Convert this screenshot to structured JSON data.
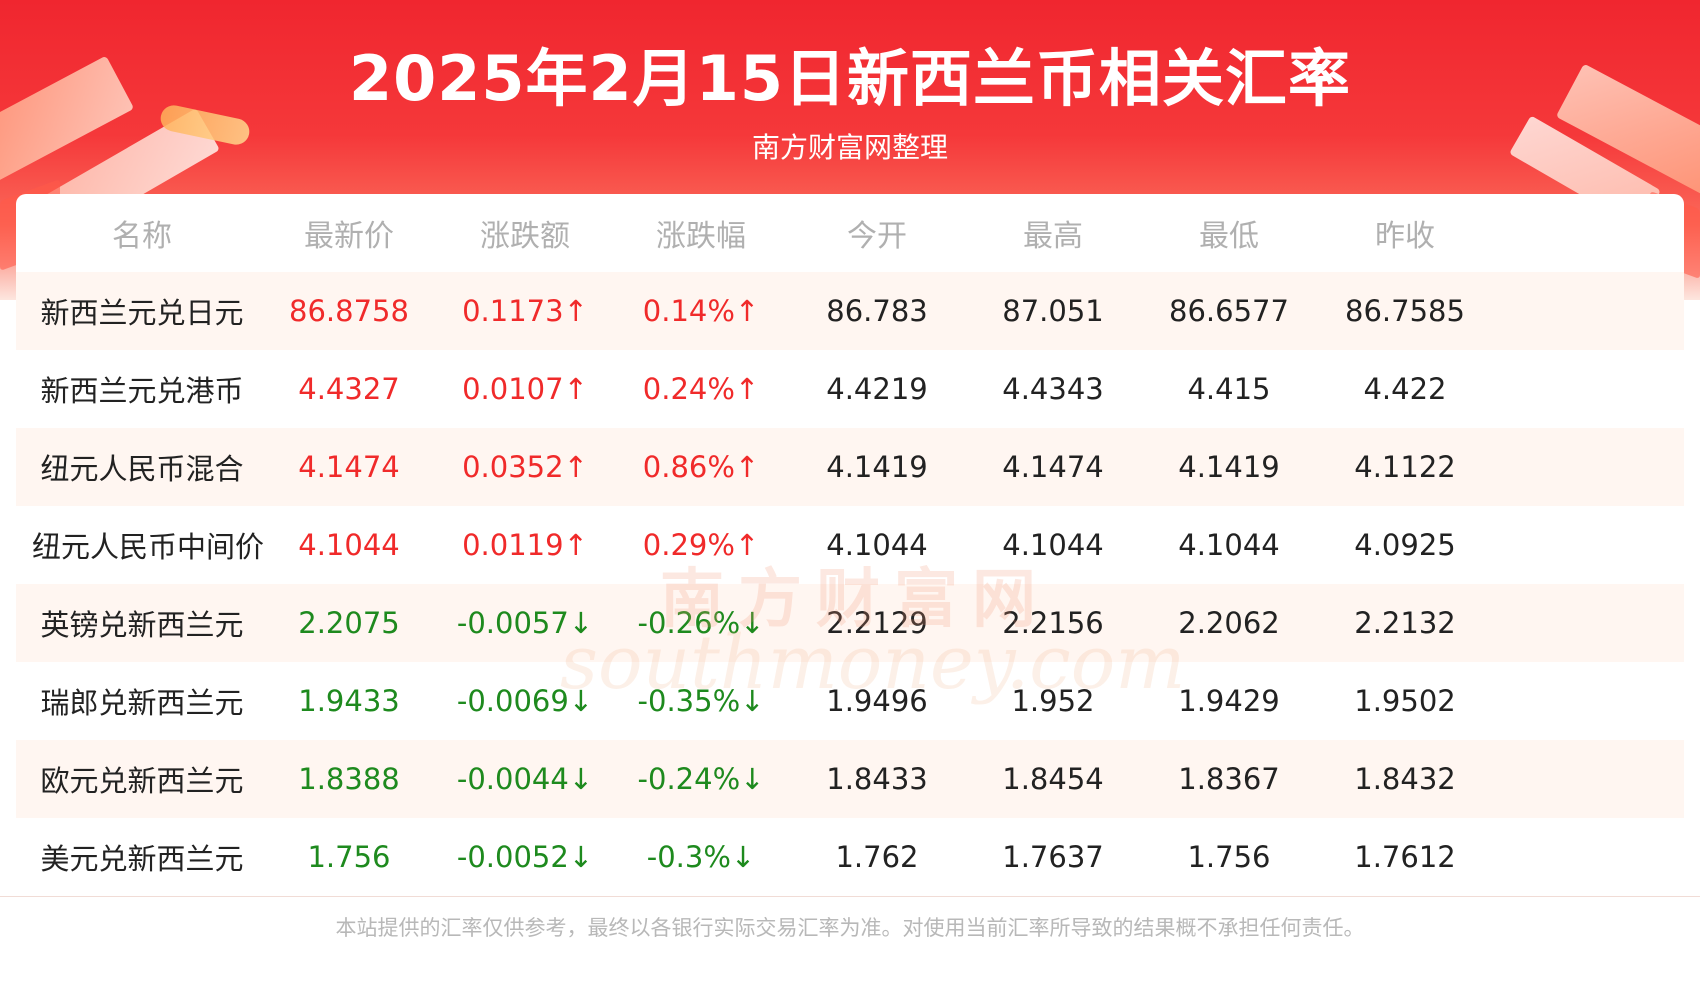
{
  "header": {
    "title": "2025年2月15日新西兰币相关汇率",
    "subtitle": "南方财富网整理"
  },
  "colors": {
    "up": "#f02a2a",
    "down": "#1e8a1e",
    "header_red": "#f0262f",
    "row_tint": "#fff6f1"
  },
  "table": {
    "headers": [
      "名称",
      "最新价",
      "涨跌额",
      "涨跌幅",
      "今开",
      "最高",
      "最低",
      "昨收"
    ],
    "rows": [
      {
        "name": "新西兰元兑日元",
        "latest": "86.8758",
        "change": "0.1173↑",
        "pct": "0.14%↑",
        "open": "86.783",
        "high": "87.051",
        "low": "86.6577",
        "prev": "86.7585",
        "dir": "up"
      },
      {
        "name": "新西兰元兑港币",
        "latest": "4.4327",
        "change": "0.0107↑",
        "pct": "0.24%↑",
        "open": "4.4219",
        "high": "4.4343",
        "low": "4.415",
        "prev": "4.422",
        "dir": "up"
      },
      {
        "name": "纽元人民币混合",
        "latest": "4.1474",
        "change": "0.0352↑",
        "pct": "0.86%↑",
        "open": "4.1419",
        "high": "4.1474",
        "low": "4.1419",
        "prev": "4.1122",
        "dir": "up"
      },
      {
        "name": "纽元人民币中间价",
        "latest": "4.1044",
        "change": "0.0119↑",
        "pct": "0.29%↑",
        "open": "4.1044",
        "high": "4.1044",
        "low": "4.1044",
        "prev": "4.0925",
        "dir": "up"
      },
      {
        "name": "英镑兑新西兰元",
        "latest": "2.2075",
        "change": "-0.0057↓",
        "pct": "-0.26%↓",
        "open": "2.2129",
        "high": "2.2156",
        "low": "2.2062",
        "prev": "2.2132",
        "dir": "down"
      },
      {
        "name": "瑞郎兑新西兰元",
        "latest": "1.9433",
        "change": "-0.0069↓",
        "pct": "-0.35%↓",
        "open": "1.9496",
        "high": "1.952",
        "low": "1.9429",
        "prev": "1.9502",
        "dir": "down"
      },
      {
        "name": "欧元兑新西兰元",
        "latest": "1.8388",
        "change": "-0.0044↓",
        "pct": "-0.24%↓",
        "open": "1.8433",
        "high": "1.8454",
        "low": "1.8367",
        "prev": "1.8432",
        "dir": "down"
      },
      {
        "name": "美元兑新西兰元",
        "latest": "1.756",
        "change": "-0.0052↓",
        "pct": "-0.3%↓",
        "open": "1.762",
        "high": "1.7637",
        "low": "1.756",
        "prev": "1.7612",
        "dir": "down"
      }
    ]
  },
  "watermark": {
    "cn": "南方财富网",
    "en": "southmoney.com"
  },
  "footer": {
    "disclaimer": "本站提供的汇率仅供参考，最终以各银行实际交易汇率为准。对使用当前汇率所导致的结果概不承担任何责任。"
  }
}
